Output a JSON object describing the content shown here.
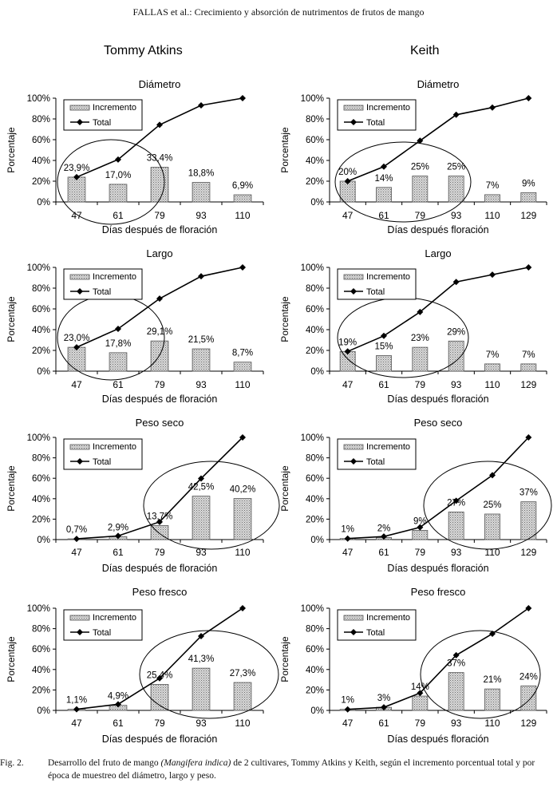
{
  "header": "FALLAS et al.: Crecimiento y absorción de nutrimentos de frutos de mango",
  "cultivars": [
    "Tommy Atkins",
    "Keith"
  ],
  "caption": {
    "label": "Fig. 2.",
    "pre": "Desarrollo del fruto de mango ",
    "species": "(Mangifera indica)",
    "post": " de 2 cultivares, Tommy Atkins y Keith, según el incremento porcentual total y por época de muestreo del diámetro, largo y peso."
  },
  "chart_data": [
    {
      "type": "bar",
      "cultivar": "Tommy Atkins",
      "title": "Diámetro",
      "xlabel": "Días después de floración",
      "ylabel": "Porcentaje",
      "ylim": [
        0,
        100
      ],
      "yticks": [
        "0%",
        "20%",
        "40%",
        "60%",
        "80%",
        "100%"
      ],
      "categories": [
        "47",
        "61",
        "79",
        "93",
        "110"
      ],
      "legend": {
        "position": "top-left",
        "entries": [
          "Incremento",
          "Total"
        ]
      },
      "series": [
        {
          "name": "Incremento",
          "values": [
            23.9,
            17.0,
            33.4,
            18.8,
            6.9
          ],
          "labels": [
            "23,9%",
            "17,0%",
            "33,4%",
            "18,8%",
            "6,9%"
          ]
        },
        {
          "name": "Total",
          "type": "line",
          "values": [
            23.9,
            40.9,
            74.3,
            93.1,
            100
          ]
        }
      ]
    },
    {
      "type": "bar",
      "cultivar": "Keith",
      "title": "Diámetro",
      "xlabel": "Días después floración",
      "ylabel": "Porcentaje",
      "ylim": [
        0,
        100
      ],
      "yticks": [
        "0%",
        "20%",
        "40%",
        "60%",
        "80%",
        "100%"
      ],
      "categories": [
        "47",
        "61",
        "79",
        "93",
        "110",
        "129"
      ],
      "legend": {
        "position": "top-left",
        "entries": [
          "Incremento",
          "Total"
        ]
      },
      "series": [
        {
          "name": "Incremento",
          "values": [
            20,
            14,
            25,
            25,
            7,
            9
          ],
          "labels": [
            "20%",
            "14%",
            "25%",
            "25%",
            "7%",
            "9%"
          ]
        },
        {
          "name": "Total",
          "type": "line",
          "values": [
            20,
            34,
            59,
            84,
            91,
            100
          ]
        }
      ]
    },
    {
      "type": "bar",
      "cultivar": "Tommy Atkins",
      "title": "Largo",
      "xlabel": "Días después de floración",
      "ylabel": "Porcentaje",
      "ylim": [
        0,
        100
      ],
      "yticks": [
        "0%",
        "20%",
        "40%",
        "60%",
        "80%",
        "100%"
      ],
      "categories": [
        "47",
        "61",
        "79",
        "93",
        "110"
      ],
      "legend": {
        "position": "top-left",
        "entries": [
          "Incremento",
          "Total"
        ]
      },
      "series": [
        {
          "name": "Incremento",
          "values": [
            23.0,
            17.8,
            29.1,
            21.5,
            8.7
          ],
          "labels": [
            "23,0%",
            "17,8%",
            "29,1%",
            "21,5%",
            "8,7%"
          ]
        },
        {
          "name": "Total",
          "type": "line",
          "values": [
            23.0,
            40.8,
            69.9,
            91.4,
            100
          ]
        }
      ]
    },
    {
      "type": "bar",
      "cultivar": "Keith",
      "title": "Largo",
      "xlabel": "Días después floración",
      "ylabel": "Porcentaje",
      "ylim": [
        0,
        100
      ],
      "yticks": [
        "0%",
        "20%",
        "40%",
        "60%",
        "80%",
        "100%"
      ],
      "categories": [
        "47",
        "61",
        "79",
        "93",
        "110",
        "129"
      ],
      "legend": {
        "position": "top-left",
        "entries": [
          "Incremento",
          "Total"
        ]
      },
      "series": [
        {
          "name": "Incremento",
          "values": [
            19,
            15,
            23,
            29,
            7,
            7
          ],
          "labels": [
            "19%",
            "15%",
            "23%",
            "29%",
            "7%",
            "7%"
          ]
        },
        {
          "name": "Total",
          "type": "line",
          "values": [
            19,
            34,
            57,
            86,
            93,
            100
          ]
        }
      ]
    },
    {
      "type": "bar",
      "cultivar": "Tommy Atkins",
      "title": "Peso seco",
      "xlabel": "Días después de floración",
      "ylabel": "Porcentaje",
      "ylim": [
        0,
        100
      ],
      "yticks": [
        "0%",
        "20%",
        "40%",
        "60%",
        "80%",
        "100%"
      ],
      "categories": [
        "47",
        "61",
        "79",
        "93",
        "110"
      ],
      "legend": {
        "position": "top-left",
        "entries": [
          "Incremento",
          "Total"
        ]
      },
      "series": [
        {
          "name": "Incremento",
          "values": [
            0.7,
            2.9,
            13.7,
            42.5,
            40.2
          ],
          "labels": [
            "0,7%",
            "2,9%",
            "13,7%",
            "42,5%",
            "40,2%"
          ]
        },
        {
          "name": "Total",
          "type": "line",
          "values": [
            0.7,
            3.6,
            17.3,
            59.8,
            100
          ]
        }
      ]
    },
    {
      "type": "bar",
      "cultivar": "Keith",
      "title": "Peso seco",
      "xlabel": "Días después floración",
      "ylabel": "Porcentaje",
      "ylim": [
        0,
        100
      ],
      "yticks": [
        "0%",
        "20%",
        "40%",
        "60%",
        "80%",
        "100%"
      ],
      "categories": [
        "47",
        "61",
        "79",
        "93",
        "110",
        "129"
      ],
      "legend": {
        "position": "top-left",
        "entries": [
          "Incremento",
          "Total"
        ]
      },
      "series": [
        {
          "name": "Incremento",
          "values": [
            1,
            2,
            9,
            27,
            25,
            37
          ],
          "labels": [
            "1%",
            "2%",
            "9%",
            "27%",
            "25%",
            "37%"
          ]
        },
        {
          "name": "Total",
          "type": "line",
          "values": [
            1,
            3,
            12,
            38,
            63,
            100
          ]
        }
      ]
    },
    {
      "type": "bar",
      "cultivar": "Tommy Atkins",
      "title": "Peso fresco",
      "xlabel": "Días después de floración",
      "ylabel": "Porcentaje",
      "ylim": [
        0,
        100
      ],
      "yticks": [
        "0%",
        "20%",
        "40%",
        "60%",
        "80%",
        "100%"
      ],
      "categories": [
        "47",
        "61",
        "79",
        "93",
        "110"
      ],
      "legend": {
        "position": "top-left",
        "entries": [
          "Incremento",
          "Total"
        ]
      },
      "series": [
        {
          "name": "Incremento",
          "values": [
            1.1,
            4.9,
            25.4,
            41.3,
            27.3
          ],
          "labels": [
            "1,1%",
            "4,9%",
            "25,4%",
            "41,3%",
            "27,3%"
          ]
        },
        {
          "name": "Total",
          "type": "line",
          "values": [
            1.1,
            6.0,
            31.4,
            72.7,
            100
          ]
        }
      ]
    },
    {
      "type": "bar",
      "cultivar": "Keith",
      "title": "Peso fresco",
      "xlabel": "Días después floración",
      "ylabel": "Porcentaje",
      "ylim": [
        0,
        100
      ],
      "yticks": [
        "0%",
        "20%",
        "40%",
        "60%",
        "80%",
        "100%"
      ],
      "categories": [
        "47",
        "61",
        "79",
        "93",
        "110",
        "129"
      ],
      "legend": {
        "position": "top-left",
        "entries": [
          "Incremento",
          "Total"
        ]
      },
      "series": [
        {
          "name": "Incremento",
          "values": [
            1,
            3,
            14,
            37,
            21,
            24
          ],
          "labels": [
            "1%",
            "3%",
            "14%",
            "37%",
            "21%",
            "24%"
          ]
        },
        {
          "name": "Total",
          "type": "line",
          "values": [
            1,
            3,
            17,
            54,
            75,
            100
          ]
        }
      ]
    }
  ]
}
